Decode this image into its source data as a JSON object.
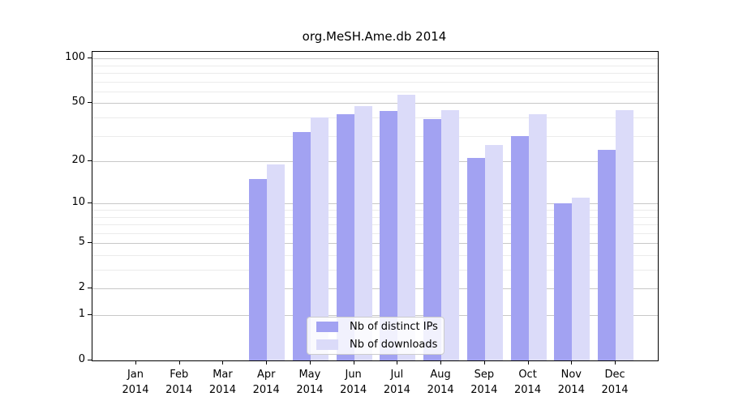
{
  "title": "org.MeSH.Ame.db 2014",
  "chart_data": {
    "type": "bar",
    "title": "org.MeSH.Ame.db 2014",
    "categories": [
      "Jan",
      "Feb",
      "Mar",
      "Apr",
      "May",
      "Jun",
      "Jul",
      "Aug",
      "Sep",
      "Oct",
      "Nov",
      "Dec"
    ],
    "year": "2014",
    "series": [
      {
        "name": "Nb of distinct IPs",
        "color": "#a2a2f2",
        "values": [
          0,
          0,
          0,
          15,
          32,
          42,
          44,
          39,
          21,
          30,
          10,
          24
        ]
      },
      {
        "name": "Nb of downloads",
        "color": "#dbdbf9",
        "values": [
          0,
          0,
          0,
          19,
          40,
          48,
          57,
          45,
          26,
          42,
          11,
          45
        ]
      }
    ],
    "xlabel": "",
    "ylabel": "",
    "yscale": "log1p",
    "ylim": [
      0,
      110
    ],
    "yticks": [
      100,
      50,
      20,
      10,
      5,
      2,
      1,
      0
    ],
    "minor_gridlines": [
      3,
      4,
      6,
      7,
      8,
      9,
      30,
      40,
      60,
      70,
      80,
      90
    ],
    "grid": true,
    "legend_position": "lower center",
    "bar_colors": {
      "ips": "#a2a2f2",
      "downloads": "#dbdbf9"
    }
  }
}
